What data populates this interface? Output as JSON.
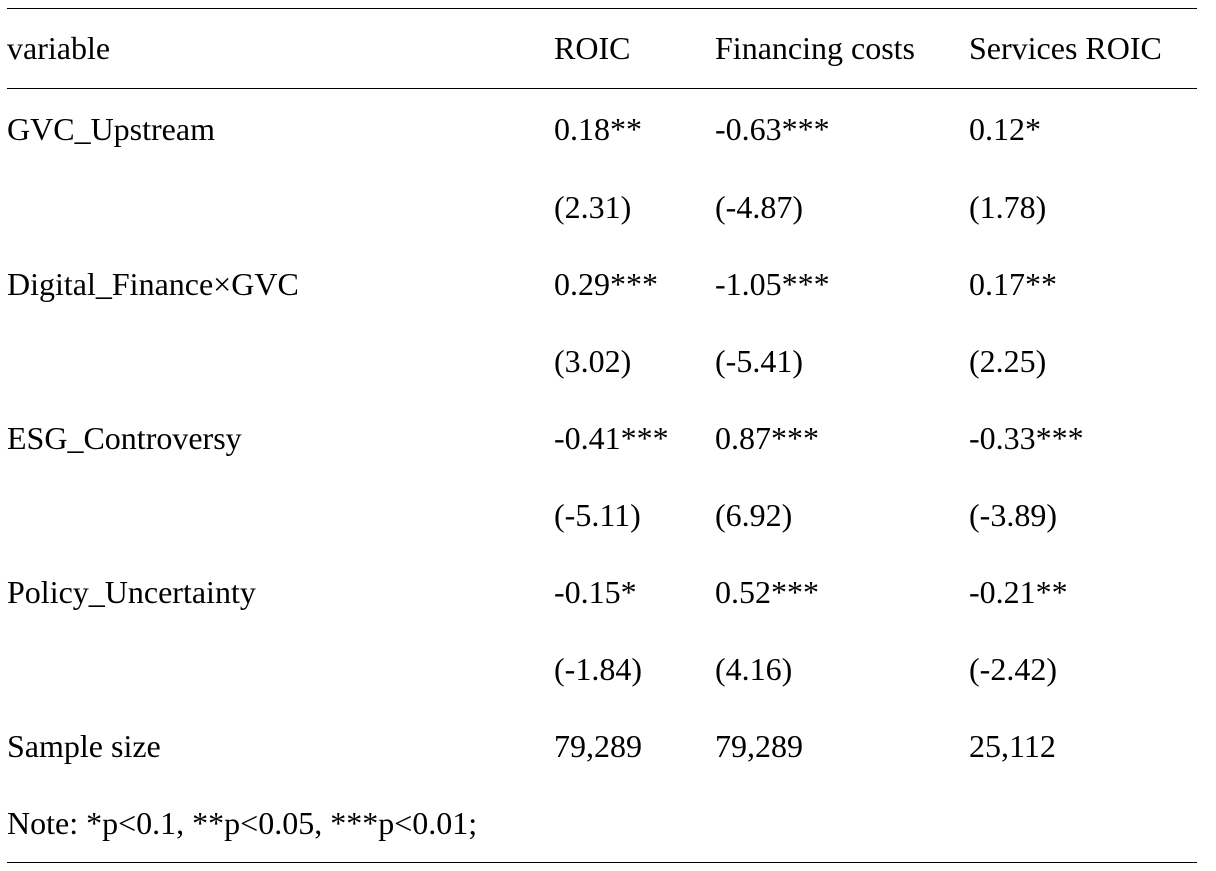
{
  "table": {
    "headers": [
      "variable",
      "ROIC",
      "Financing costs",
      "Services ROIC"
    ],
    "rows": [
      {
        "variable": "GVC_Upstream",
        "roic": "0.18**",
        "financing": "-0.63***",
        "services": "0.12*"
      },
      {
        "variable": "",
        "roic": "(2.31)",
        "financing": "(-4.87)",
        "services": "(1.78)"
      },
      {
        "variable": "Digital_Finance×GVC",
        "roic": "0.29***",
        "financing": "-1.05***",
        "services": "0.17**"
      },
      {
        "variable": "",
        "roic": "(3.02)",
        "financing": "(-5.41)",
        "services": "(2.25)"
      },
      {
        "variable": "ESG_Controversy",
        "roic": "-0.41***",
        "financing": "0.87***",
        "services": "-0.33***"
      },
      {
        "variable": "",
        "roic": "(-5.11)",
        "financing": "(6.92)",
        "services": "(-3.89)"
      },
      {
        "variable": "Policy_Uncertainty",
        "roic": "-0.15*",
        "financing": "0.52***",
        "services": "-0.21**"
      },
      {
        "variable": "",
        "roic": "(-1.84)",
        "financing": "(4.16)",
        "services": "(-2.42)"
      },
      {
        "variable": "Sample size",
        "roic": "79,289",
        "financing": "79,289",
        "services": "25,112"
      }
    ],
    "note": "Note: *p<0.1, **p<0.05, ***p<0.01;"
  }
}
